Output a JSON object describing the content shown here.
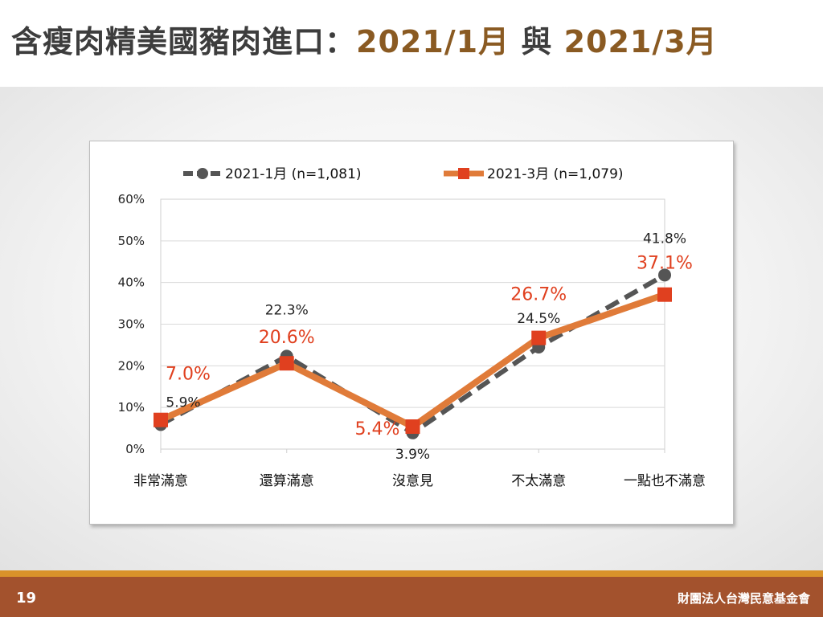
{
  "slide": {
    "title_main": "含瘦肉精美國豬肉進口：",
    "title_date1": "2021/1月",
    "title_and": " 與 ",
    "title_date2": "2021/3月",
    "page_number": "19",
    "organization": "財團法人台灣民意基金會"
  },
  "colors": {
    "series1": "#555555",
    "series2": "#e07b39",
    "series2_marker": "#e0401f",
    "series2_label": "#e0401f",
    "series1_label": "#222222",
    "title_accent": "#8a5a22",
    "footer": "#a3522d",
    "footer_stripe": "#d9922a"
  },
  "chart_data": {
    "type": "line",
    "title": "",
    "xlabel": "",
    "ylabel": "",
    "categories": [
      "非常滿意",
      "還算滿意",
      "沒意見",
      "不太滿意",
      "一點也不滿意"
    ],
    "ylim": [
      0,
      60
    ],
    "yticks": [
      "0%",
      "10%",
      "20%",
      "30%",
      "40%",
      "50%",
      "60%"
    ],
    "grid": true,
    "legend_position": "top",
    "series": [
      {
        "name": "2021-1月  (n=1,081)",
        "values": [
          5.9,
          22.3,
          3.9,
          24.5,
          41.8
        ],
        "labels": [
          "5.9%",
          "22.3%",
          "3.9%",
          "24.5%",
          "41.8%"
        ],
        "style": "dashed",
        "marker": "circle"
      },
      {
        "name": "2021-3月  (n=1,079)",
        "values": [
          7.0,
          20.6,
          5.4,
          26.7,
          37.1
        ],
        "labels": [
          "7.0%",
          "20.6%",
          "5.4%",
          "26.7%",
          "37.1%"
        ],
        "style": "solid",
        "marker": "square"
      }
    ]
  }
}
